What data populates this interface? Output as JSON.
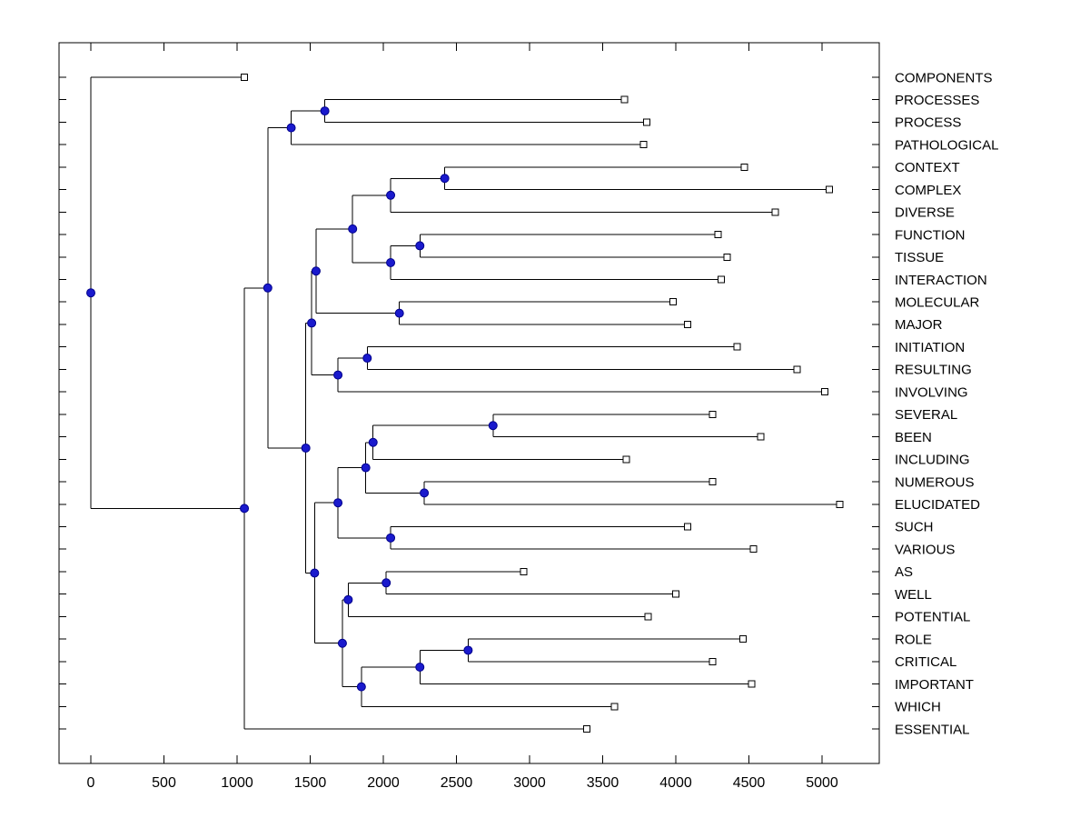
{
  "figure": {
    "background": "#ffffff"
  },
  "chart_data": {
    "type": "dendrogram",
    "orientation": "horizontal-root-left",
    "title": "",
    "xlabel": "",
    "ylabel": "",
    "grid": false,
    "legend": false,
    "x_ticks": [
      0,
      500,
      1000,
      1500,
      2000,
      2500,
      3000,
      3500,
      4000,
      4500,
      5000
    ],
    "x_axis_range": [
      -217,
      5391
    ],
    "markers": {
      "internal": "filled-circle",
      "leaf": "open-square"
    },
    "colors": {
      "branch": "#000000",
      "frame": "#000000",
      "text": "#000000",
      "internal_node_fill": "#1a1acd",
      "internal_node_stroke": "#00008b",
      "leaf_marker_fill": "#ffffff",
      "leaf_marker_stroke": "#000000"
    },
    "leaves": [
      {
        "name": "COMPONENTS",
        "x": 1050
      },
      {
        "name": "PROCESSES",
        "x": 3650
      },
      {
        "name": "PROCESS",
        "x": 3800
      },
      {
        "name": "PATHOLOGICAL",
        "x": 3780
      },
      {
        "name": "CONTEXT",
        "x": 4470
      },
      {
        "name": "COMPLEX",
        "x": 5050
      },
      {
        "name": "DIVERSE",
        "x": 4680
      },
      {
        "name": "FUNCTION",
        "x": 4290
      },
      {
        "name": "TISSUE",
        "x": 4350
      },
      {
        "name": "INTERACTION",
        "x": 4310
      },
      {
        "name": "MOLECULAR",
        "x": 3980
      },
      {
        "name": "MAJOR",
        "x": 4080
      },
      {
        "name": "INITIATION",
        "x": 4420
      },
      {
        "name": "RESULTING",
        "x": 4830
      },
      {
        "name": "INVOLVING",
        "x": 5020
      },
      {
        "name": "SEVERAL",
        "x": 4250
      },
      {
        "name": "BEEN",
        "x": 4580
      },
      {
        "name": "INCLUDING",
        "x": 3660
      },
      {
        "name": "NUMEROUS",
        "x": 4250
      },
      {
        "name": "ELUCIDATED",
        "x": 5120
      },
      {
        "name": "SUCH",
        "x": 4080
      },
      {
        "name": "VARIOUS",
        "x": 4530
      },
      {
        "name": "AS",
        "x": 2960
      },
      {
        "name": "WELL",
        "x": 4000
      },
      {
        "name": "POTENTIAL",
        "x": 3810
      },
      {
        "name": "ROLE",
        "x": 4460
      },
      {
        "name": "CRITICAL",
        "x": 4250
      },
      {
        "name": "IMPORTANT",
        "x": 4520
      },
      {
        "name": "WHICH",
        "x": 3580
      },
      {
        "name": "ESSENTIAL",
        "x": 3390
      }
    ],
    "nodes": [
      {
        "id": "A1",
        "x": 1600,
        "children": [
          "PROCESSES",
          "PROCESS"
        ]
      },
      {
        "id": "A",
        "x": 1370,
        "children": [
          "A1",
          "PATHOLOGICAL"
        ]
      },
      {
        "id": "E4",
        "x": 2420,
        "children": [
          "CONTEXT",
          "COMPLEX"
        ]
      },
      {
        "id": "E3",
        "x": 2050,
        "children": [
          "E4",
          "DIVERSE"
        ]
      },
      {
        "id": "E6",
        "x": 2250,
        "children": [
          "FUNCTION",
          "TISSUE"
        ]
      },
      {
        "id": "E5",
        "x": 2050,
        "children": [
          "E6",
          "INTERACTION"
        ]
      },
      {
        "id": "E2",
        "x": 1790,
        "children": [
          "E3",
          "E5"
        ]
      },
      {
        "id": "E7",
        "x": 2110,
        "children": [
          "MOLECULAR",
          "MAJOR"
        ]
      },
      {
        "id": "E1",
        "x": 1540,
        "children": [
          "E2",
          "E7"
        ]
      },
      {
        "id": "E9",
        "x": 1890,
        "children": [
          "INITIATION",
          "RESULTING"
        ]
      },
      {
        "id": "E8",
        "x": 1690,
        "children": [
          "E9",
          "INVOLVING"
        ]
      },
      {
        "id": "E",
        "x": 1510,
        "children": [
          "E1",
          "E8"
        ]
      },
      {
        "id": "F4",
        "x": 2750,
        "children": [
          "SEVERAL",
          "BEEN"
        ]
      },
      {
        "id": "F3",
        "x": 1930,
        "children": [
          "F4",
          "INCLUDING"
        ]
      },
      {
        "id": "F5",
        "x": 2280,
        "children": [
          "NUMEROUS",
          "ELUCIDATED"
        ]
      },
      {
        "id": "F2",
        "x": 1880,
        "children": [
          "F3",
          "F5"
        ]
      },
      {
        "id": "F6",
        "x": 2050,
        "children": [
          "SUCH",
          "VARIOUS"
        ]
      },
      {
        "id": "F1",
        "x": 1690,
        "children": [
          "F2",
          "F6"
        ]
      },
      {
        "id": "F9",
        "x": 2020,
        "children": [
          "AS",
          "WELL"
        ]
      },
      {
        "id": "F8",
        "x": 1760,
        "children": [
          "F9",
          "POTENTIAL"
        ]
      },
      {
        "id": "F12",
        "x": 2580,
        "children": [
          "ROLE",
          "CRITICAL"
        ]
      },
      {
        "id": "F11",
        "x": 2250,
        "children": [
          "F12",
          "IMPORTANT"
        ]
      },
      {
        "id": "F10",
        "x": 1850,
        "children": [
          "F11",
          "WHICH"
        ]
      },
      {
        "id": "F7",
        "x": 1720,
        "children": [
          "F8",
          "F10"
        ]
      },
      {
        "id": "F",
        "x": 1530,
        "children": [
          "F1",
          "F7"
        ]
      },
      {
        "id": "D",
        "x": 1470,
        "children": [
          "E",
          "F"
        ]
      },
      {
        "id": "C",
        "x": 1210,
        "children": [
          "A",
          "D"
        ]
      },
      {
        "id": "B",
        "x": 1050,
        "children": [
          "C",
          "ESSENTIAL"
        ]
      },
      {
        "id": "root",
        "x": 0,
        "children": [
          "COMPONENTS",
          "B"
        ]
      }
    ]
  }
}
